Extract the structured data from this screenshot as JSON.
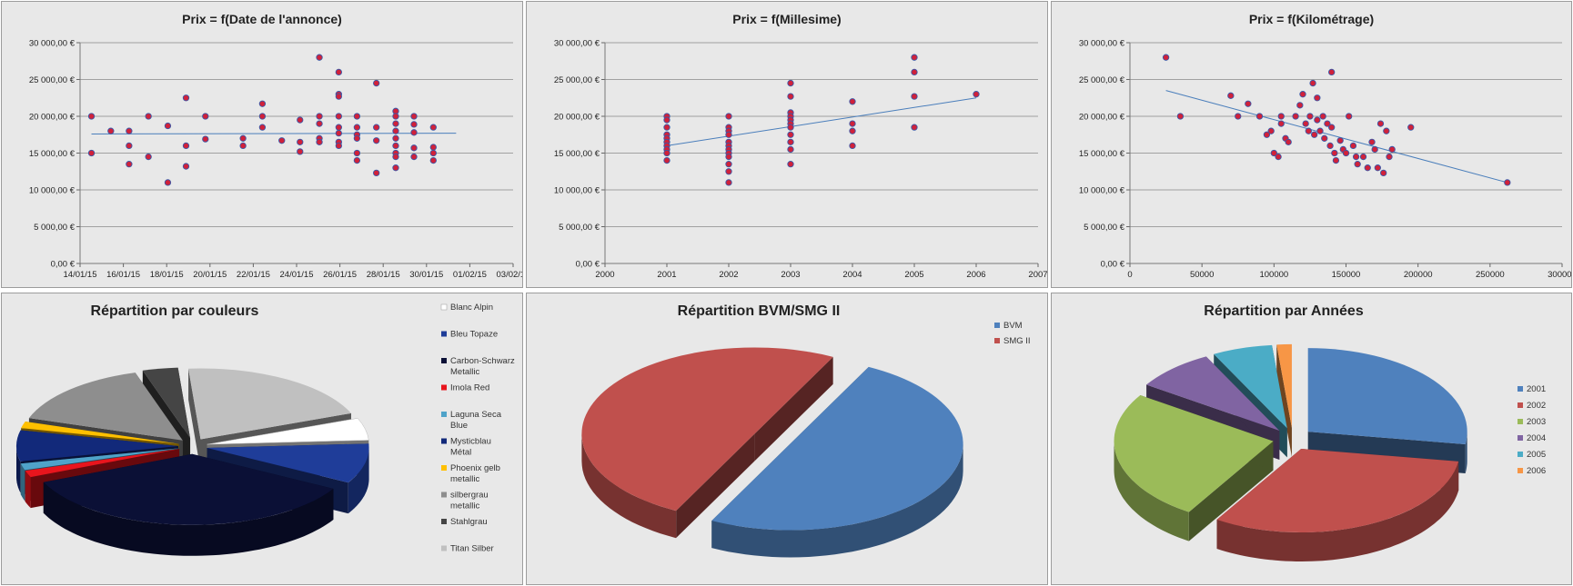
{
  "chart_data": [
    {
      "id": "date",
      "type": "scatter",
      "title": "Prix = f(Date de l'annonce)",
      "ylim": [
        0,
        30000
      ],
      "yticks": [
        "0,00 €",
        "5 000,00 €",
        "10 000,00 €",
        "15 000,00 €",
        "20 000,00 €",
        "25 000,00 €",
        "30 000,00 €"
      ],
      "xlim": [
        0,
        38
      ],
      "xticks": [
        "14/01/15",
        "16/01/15",
        "18/01/15",
        "20/01/15",
        "22/01/15",
        "24/01/15",
        "26/01/15",
        "28/01/15",
        "30/01/15",
        "01/02/15",
        "03/02/15"
      ],
      "grid": true,
      "trendline": [
        [
          1,
          17600
        ],
        [
          33,
          17700
        ]
      ],
      "points": [
        [
          1,
          20000
        ],
        [
          1,
          15000
        ],
        [
          2.7,
          18000
        ],
        [
          4.3,
          18000
        ],
        [
          4.3,
          16000
        ],
        [
          4.3,
          13500
        ],
        [
          6,
          20000
        ],
        [
          6,
          14500
        ],
        [
          7.7,
          18700
        ],
        [
          7.7,
          11000
        ],
        [
          9.3,
          22500
        ],
        [
          9.3,
          16000
        ],
        [
          9.3,
          13200
        ],
        [
          11,
          20000
        ],
        [
          11,
          16900
        ],
        [
          14.3,
          17000
        ],
        [
          14.3,
          16000
        ],
        [
          16,
          21700
        ],
        [
          16,
          20000
        ],
        [
          16,
          18500
        ],
        [
          17.7,
          16700
        ],
        [
          19.3,
          19500
        ],
        [
          19.3,
          16500
        ],
        [
          19.3,
          15200
        ],
        [
          21,
          28000
        ],
        [
          21,
          20000
        ],
        [
          21,
          19000
        ],
        [
          21,
          17000
        ],
        [
          21,
          16500
        ],
        [
          22.7,
          26000
        ],
        [
          22.7,
          23000
        ],
        [
          22.7,
          22700
        ],
        [
          22.7,
          20000
        ],
        [
          22.7,
          18500
        ],
        [
          22.7,
          17700
        ],
        [
          22.7,
          16500
        ],
        [
          22.7,
          16000
        ],
        [
          24.3,
          20000
        ],
        [
          24.3,
          18500
        ],
        [
          24.3,
          17500
        ],
        [
          24.3,
          17000
        ],
        [
          24.3,
          15000
        ],
        [
          24.3,
          14000
        ],
        [
          26,
          24500
        ],
        [
          26,
          18500
        ],
        [
          26,
          16700
        ],
        [
          26,
          12300
        ],
        [
          27.7,
          20700
        ],
        [
          27.7,
          20000
        ],
        [
          27.7,
          19000
        ],
        [
          27.7,
          18000
        ],
        [
          27.7,
          17000
        ],
        [
          27.7,
          16000
        ],
        [
          27.7,
          15000
        ],
        [
          27.7,
          14500
        ],
        [
          27.7,
          13000
        ],
        [
          29.3,
          20000
        ],
        [
          29.3,
          18900
        ],
        [
          29.3,
          17800
        ],
        [
          29.3,
          15700
        ],
        [
          29.3,
          14500
        ],
        [
          31,
          18500
        ],
        [
          31,
          15800
        ],
        [
          31,
          15000
        ],
        [
          31,
          14000
        ]
      ]
    },
    {
      "id": "millesime",
      "type": "scatter",
      "title": "Prix = f(Millesime)",
      "ylim": [
        0,
        30000
      ],
      "yticks": [
        "0,00 €",
        "5 000,00 €",
        "10 000,00 €",
        "15 000,00 €",
        "20 000,00 €",
        "25 000,00 €",
        "30 000,00 €"
      ],
      "xlim": [
        2000,
        2007
      ],
      "xticks": [
        "2000",
        "2001",
        "2002",
        "2003",
        "2004",
        "2005",
        "2006",
        "2007"
      ],
      "grid": true,
      "trendline": [
        [
          2001,
          16000
        ],
        [
          2006,
          22500
        ]
      ],
      "points": [
        [
          2001,
          20000
        ],
        [
          2001,
          19500
        ],
        [
          2001,
          18500
        ],
        [
          2001,
          17500
        ],
        [
          2001,
          17000
        ],
        [
          2001,
          16500
        ],
        [
          2001,
          16000
        ],
        [
          2001,
          15500
        ],
        [
          2001,
          15000
        ],
        [
          2001,
          14000
        ],
        [
          2002,
          20000
        ],
        [
          2002,
          18500
        ],
        [
          2002,
          18000
        ],
        [
          2002,
          17500
        ],
        [
          2002,
          16500
        ],
        [
          2002,
          16000
        ],
        [
          2002,
          15500
        ],
        [
          2002,
          15000
        ],
        [
          2002,
          14500
        ],
        [
          2002,
          13500
        ],
        [
          2002,
          12500
        ],
        [
          2002,
          11000
        ],
        [
          2003,
          24500
        ],
        [
          2003,
          22700
        ],
        [
          2003,
          20500
        ],
        [
          2003,
          20000
        ],
        [
          2003,
          19500
        ],
        [
          2003,
          19000
        ],
        [
          2003,
          18500
        ],
        [
          2003,
          17500
        ],
        [
          2003,
          16500
        ],
        [
          2003,
          15500
        ],
        [
          2003,
          13500
        ],
        [
          2004,
          22000
        ],
        [
          2004,
          19000
        ],
        [
          2004,
          18000
        ],
        [
          2004,
          16000
        ],
        [
          2005,
          28000
        ],
        [
          2005,
          26000
        ],
        [
          2005,
          22700
        ],
        [
          2005,
          18500
        ],
        [
          2006,
          23000
        ]
      ]
    },
    {
      "id": "km",
      "type": "scatter",
      "title": "Prix = f(Kilométrage)",
      "ylim": [
        0,
        30000
      ],
      "yticks": [
        "0,00 €",
        "5 000,00 €",
        "10 000,00 €",
        "15 000,00 €",
        "20 000,00 €",
        "25 000,00 €",
        "30 000,00 €"
      ],
      "xlim": [
        0,
        300000
      ],
      "xticks": [
        "0",
        "50000",
        "100000",
        "150000",
        "200000",
        "250000",
        "300000"
      ],
      "grid": true,
      "trendline": [
        [
          25000,
          23500
        ],
        [
          262000,
          11000
        ]
      ],
      "points": [
        [
          25000,
          28000
        ],
        [
          35000,
          20000
        ],
        [
          70000,
          22800
        ],
        [
          75000,
          20000
        ],
        [
          82000,
          21700
        ],
        [
          90000,
          20000
        ],
        [
          95000,
          17500
        ],
        [
          98000,
          18000
        ],
        [
          100000,
          15000
        ],
        [
          103000,
          14500
        ],
        [
          105000,
          20000
        ],
        [
          105000,
          19000
        ],
        [
          108000,
          17000
        ],
        [
          110000,
          16500
        ],
        [
          115000,
          20000
        ],
        [
          118000,
          21500
        ],
        [
          120000,
          23000
        ],
        [
          122000,
          19000
        ],
        [
          124000,
          18000
        ],
        [
          125000,
          20000
        ],
        [
          127000,
          24500
        ],
        [
          128000,
          17500
        ],
        [
          130000,
          22500
        ],
        [
          130000,
          19500
        ],
        [
          132000,
          18000
        ],
        [
          134000,
          20000
        ],
        [
          135000,
          17000
        ],
        [
          137000,
          19000
        ],
        [
          139000,
          16000
        ],
        [
          140000,
          26000
        ],
        [
          140000,
          18500
        ],
        [
          142000,
          15000
        ],
        [
          143000,
          14000
        ],
        [
          146000,
          16700
        ],
        [
          148000,
          15500
        ],
        [
          150000,
          15000
        ],
        [
          152000,
          20000
        ],
        [
          155000,
          16000
        ],
        [
          157000,
          14500
        ],
        [
          158000,
          13500
        ],
        [
          162000,
          14500
        ],
        [
          165000,
          13000
        ],
        [
          168000,
          16500
        ],
        [
          170000,
          15500
        ],
        [
          172000,
          13000
        ],
        [
          174000,
          19000
        ],
        [
          176000,
          12300
        ],
        [
          178000,
          18000
        ],
        [
          180000,
          14500
        ],
        [
          182000,
          15500
        ],
        [
          195000,
          18500
        ],
        [
          262000,
          11000
        ]
      ]
    },
    {
      "id": "couleurs",
      "type": "pie",
      "title": "Répartition par couleurs",
      "legend_position": "right",
      "labels": [
        "Blanc Alpin",
        "Bleu Topaze",
        "Carbon-Schwarz Metallic",
        "Imola Red",
        "Laguna Seca Blue",
        "Mysticblau Métal",
        "Phoenix gelb metallic",
        "silbergrau metallic",
        "Stahlgrau",
        "Titan Silber"
      ],
      "values": [
        5,
        9,
        35,
        1.5,
        1.5,
        7,
        1.5,
        15,
        3.5,
        20
      ],
      "colors": [
        "#ffffff",
        "#1f3d99",
        "#0b1036",
        "#e8151d",
        "#4fa3c9",
        "#12297a",
        "#ffc000",
        "#8e8e8e",
        "#454545",
        "#c0c0c0"
      ]
    },
    {
      "id": "bvm",
      "type": "pie",
      "title": "Répartition BVM/SMG II",
      "legend_position": "right",
      "labels": [
        "BVM",
        "SMG II"
      ],
      "values": [
        50,
        50
      ],
      "colors": [
        "#4f81bd",
        "#c0504d"
      ]
    },
    {
      "id": "annees",
      "type": "pie",
      "title": "Répartition par Années",
      "legend_position": "right",
      "labels": [
        "2001",
        "2002",
        "2003",
        "2004",
        "2005",
        "2006"
      ],
      "values": [
        27,
        31,
        25,
        8,
        6,
        1.5
      ],
      "colors": [
        "#4f81bd",
        "#c0504d",
        "#9bbb59",
        "#8064a2",
        "#4bacc6",
        "#f79646"
      ]
    }
  ]
}
